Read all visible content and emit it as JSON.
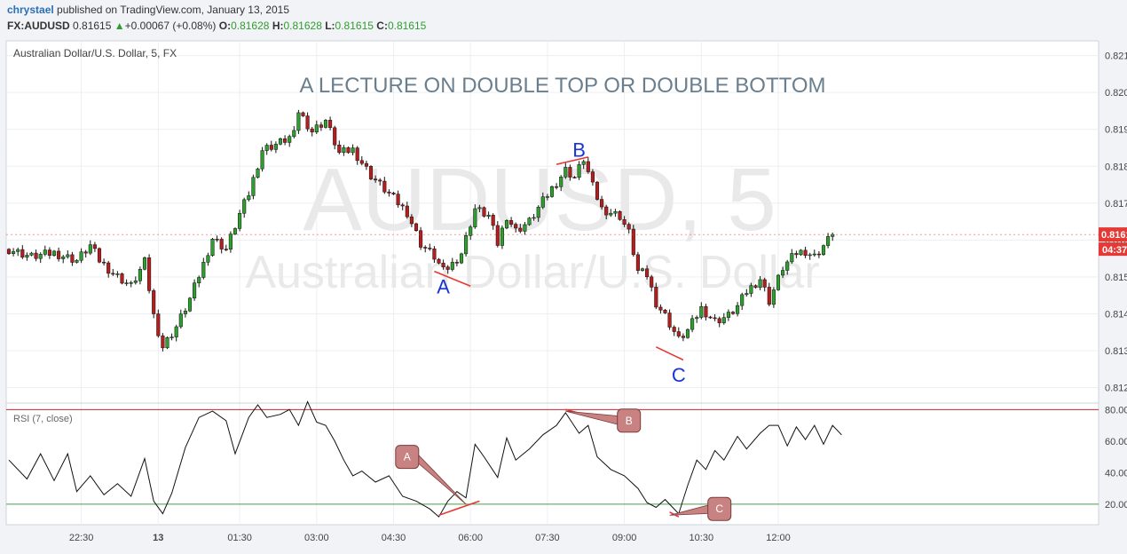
{
  "header": {
    "author": "chrystael",
    "published": "published on TradingView.com, January 13, 2015",
    "symbol": "FX:AUDUSD",
    "price": "0.81615",
    "change_arrow": "▲",
    "change": "+0.00067 (+0.08%)",
    "o_label": "O:",
    "o": "0.81628",
    "h_label": "H:",
    "h": "0.81628",
    "l_label": "L:",
    "l": "0.81615",
    "c_label": "C:",
    "c": "0.81615"
  },
  "colors": {
    "up_candle": "#2e9e2e",
    "down_candle": "#b51e1e",
    "annotation_line": "#e53935",
    "label_text": "#1a35d6",
    "callout_fill": "#c98282",
    "rsi_upper": "#c62828",
    "rsi_lower": "#43a047",
    "price_tag": "#e53935"
  },
  "chart_data": [
    {
      "type": "candlestick",
      "legend": "Australian Dollar/U.S. Dollar, 5, FX",
      "title": "A LECTURE ON DOUBLE TOP OR DOUBLE BOTTOM",
      "watermark": [
        "AUDUSD, 5",
        "Australian Dollar/U.S. Dollar"
      ],
      "y_ticks": [
        "0.82100",
        "0.82000",
        "0.81900",
        "0.81800",
        "0.81700",
        "0.81600",
        "0.81500",
        "0.81400",
        "0.81300",
        "0.81200"
      ],
      "ylim": [
        0.8117,
        0.8214
      ],
      "last_price": "0.81615",
      "countdown": "04:37",
      "close_path": [
        [
          0,
          0.81575
        ],
        [
          5,
          0.81555
        ],
        [
          10,
          0.81565
        ],
        [
          15,
          0.81545
        ],
        [
          18,
          0.81585
        ],
        [
          20,
          0.81545
        ],
        [
          23,
          0.8151
        ],
        [
          27,
          0.81475
        ],
        [
          30,
          0.8154
        ],
        [
          32,
          0.81395
        ],
        [
          34,
          0.8131
        ],
        [
          37,
          0.81365
        ],
        [
          40,
          0.8144
        ],
        [
          43,
          0.81535
        ],
        [
          45,
          0.81605
        ],
        [
          48,
          0.81575
        ],
        [
          51,
          0.8167
        ],
        [
          53,
          0.81725
        ],
        [
          56,
          0.81845
        ],
        [
          60,
          0.81865
        ],
        [
          63,
          0.81885
        ],
        [
          64,
          0.8195
        ],
        [
          67,
          0.81895
        ],
        [
          70,
          0.81925
        ],
        [
          73,
          0.81835
        ],
        [
          76,
          0.81845
        ],
        [
          80,
          0.81775
        ],
        [
          84,
          0.81725
        ],
        [
          88,
          0.81675
        ],
        [
          91,
          0.8159
        ],
        [
          94,
          0.81555
        ],
        [
          96,
          0.81515
        ],
        [
          98,
          0.81535
        ],
        [
          100,
          0.81565
        ],
        [
          103,
          0.81685
        ],
        [
          106,
          0.81665
        ],
        [
          108,
          0.8159
        ],
        [
          110,
          0.81665
        ],
        [
          112,
          0.81625
        ],
        [
          115,
          0.8165
        ],
        [
          118,
          0.81705
        ],
        [
          120,
          0.8174
        ],
        [
          123,
          0.8179
        ],
        [
          125,
          0.8177
        ],
        [
          127,
          0.8182
        ],
        [
          129,
          0.81745
        ],
        [
          131,
          0.81685
        ],
        [
          135,
          0.81665
        ],
        [
          137,
          0.8162
        ],
        [
          139,
          0.81515
        ],
        [
          141,
          0.81505
        ],
        [
          143,
          0.8143
        ],
        [
          145,
          0.81395
        ],
        [
          148,
          0.8133
        ],
        [
          150,
          0.81355
        ],
        [
          153,
          0.81415
        ],
        [
          156,
          0.8138
        ],
        [
          159,
          0.81395
        ],
        [
          161,
          0.8142
        ],
        [
          163,
          0.8146
        ],
        [
          166,
          0.81495
        ],
        [
          168,
          0.81435
        ],
        [
          171,
          0.81525
        ],
        [
          174,
          0.81565
        ],
        [
          176,
          0.8157
        ],
        [
          178,
          0.81555
        ],
        [
          180,
          0.81585
        ],
        [
          182,
          0.81615
        ]
      ],
      "annotations": [
        {
          "label": "A",
          "bar": 96,
          "price": 0.81475
        },
        {
          "label": "B",
          "bar": 126,
          "price": 0.81845
        },
        {
          "label": "C",
          "bar": 148,
          "price": 0.81235
        }
      ],
      "annotation_lines": [
        {
          "from": [
            94,
            0.81515
          ],
          "to": [
            102,
            0.81475
          ]
        },
        {
          "from": [
            121,
            0.81805
          ],
          "to": [
            128,
            0.81825
          ]
        },
        {
          "from": [
            143,
            0.8131
          ],
          "to": [
            149,
            0.81275
          ]
        }
      ]
    },
    {
      "type": "line",
      "legend": "RSI (7, close)",
      "y_ticks": [
        "80.0000",
        "60.0000",
        "40.0000",
        "20.0000"
      ],
      "ylim": [
        7,
        83
      ],
      "bands": [
        80,
        20
      ],
      "values": [
        [
          0,
          48
        ],
        [
          4,
          36
        ],
        [
          7,
          52
        ],
        [
          10,
          35
        ],
        [
          13,
          52
        ],
        [
          15,
          28
        ],
        [
          18,
          38
        ],
        [
          21,
          26
        ],
        [
          24,
          33
        ],
        [
          27,
          25
        ],
        [
          30,
          49
        ],
        [
          32,
          22
        ],
        [
          34,
          14
        ],
        [
          36,
          27
        ],
        [
          39,
          56
        ],
        [
          42,
          75
        ],
        [
          45,
          79
        ],
        [
          48,
          73
        ],
        [
          50,
          52
        ],
        [
          53,
          75
        ],
        [
          55,
          83
        ],
        [
          57,
          75
        ],
        [
          60,
          77
        ],
        [
          62,
          80
        ],
        [
          64,
          70
        ],
        [
          66,
          85
        ],
        [
          68,
          72
        ],
        [
          70,
          70
        ],
        [
          72,
          60
        ],
        [
          74,
          48
        ],
        [
          76,
          38
        ],
        [
          78,
          41
        ],
        [
          81,
          34
        ],
        [
          84,
          38
        ],
        [
          87,
          25
        ],
        [
          90,
          22
        ],
        [
          93,
          17
        ],
        [
          95,
          12
        ],
        [
          97,
          22
        ],
        [
          99,
          28
        ],
        [
          101,
          24
        ],
        [
          103,
          58
        ],
        [
          105,
          50
        ],
        [
          108,
          37
        ],
        [
          110,
          62
        ],
        [
          112,
          48
        ],
        [
          115,
          55
        ],
        [
          118,
          64
        ],
        [
          121,
          70
        ],
        [
          123,
          78
        ],
        [
          126,
          65
        ],
        [
          128,
          70
        ],
        [
          130,
          50
        ],
        [
          133,
          42
        ],
        [
          136,
          38
        ],
        [
          139,
          30
        ],
        [
          141,
          21
        ],
        [
          143,
          18
        ],
        [
          145,
          23
        ],
        [
          148,
          14
        ],
        [
          150,
          32
        ],
        [
          152,
          48
        ],
        [
          154,
          42
        ],
        [
          156,
          54
        ],
        [
          158,
          48
        ],
        [
          161,
          63
        ],
        [
          163,
          55
        ],
        [
          166,
          65
        ],
        [
          168,
          70
        ],
        [
          170,
          70
        ],
        [
          172,
          57
        ],
        [
          174,
          69
        ],
        [
          176,
          61
        ],
        [
          178,
          70
        ],
        [
          180,
          58
        ],
        [
          182,
          70
        ],
        [
          184,
          64
        ]
      ],
      "callouts": [
        {
          "label": "A",
          "bar": 88,
          "value": 50,
          "line_to_bar": 101,
          "line_to_value": 20
        },
        {
          "label": "B",
          "bar": 137,
          "value": 73,
          "line_to_bar": 123,
          "line_to_value": 79
        },
        {
          "label": "C",
          "bar": 157,
          "value": 17,
          "line_to_bar": 146,
          "line_to_value": 13
        }
      ],
      "annotation_lines": [
        {
          "from": [
            95,
            13
          ],
          "to": [
            104,
            22
          ]
        },
        {
          "from": [
            123,
            80
          ],
          "to": [
            131,
            74
          ]
        },
        {
          "from": [
            146,
            15
          ],
          "to": [
            148,
            12
          ]
        }
      ]
    }
  ],
  "x_axis": {
    "ticks": [
      {
        "bar": 16,
        "label": "22:30"
      },
      {
        "bar": 33,
        "label": "13"
      },
      {
        "bar": 51,
        "label": "01:30"
      },
      {
        "bar": 68,
        "label": "03:00"
      },
      {
        "bar": 85,
        "label": "04:30"
      },
      {
        "bar": 102,
        "label": "06:00"
      },
      {
        "bar": 119,
        "label": "07:30"
      },
      {
        "bar": 136,
        "label": "09:00"
      },
      {
        "bar": 153,
        "label": "10:30"
      },
      {
        "bar": 170,
        "label": "12:00"
      }
    ]
  }
}
